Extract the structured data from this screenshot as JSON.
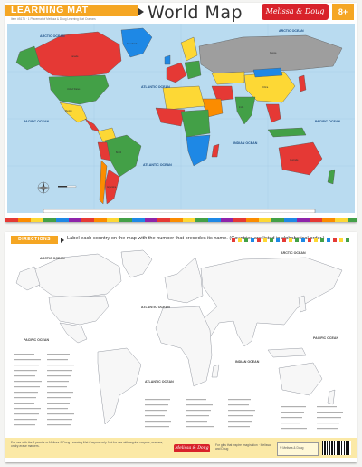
{
  "top": {
    "badge": "LEARNING MAT",
    "subtitle": "Item #5176 · 1 Placemat of Melissa & Doug Learning Mat Crayons",
    "title": "World Map",
    "brand": "Melissa & Doug",
    "age": "8+"
  },
  "oceans": {
    "arctic": "ARCTIC OCEAN",
    "pacific": "PACIFIC OCEAN",
    "atlantic": "ATLANTIC OCEAN",
    "indian": "INDIAN OCEAN"
  },
  "bottom": {
    "directions_badge": "DIRECTIONS",
    "directions": "Label each country on the map with the number that precedes its name. (Countries are listed in alphabetical order.)",
    "footer_left": "For use with the 4 pencils or Melissa & Doug Learning Mat Crayons only. Not for use with regular crayons, markers, or dry-erase markers.",
    "footer_brand": "Melissa & Doug",
    "footer_mid": "For gifts that inspire imagination · Melissa and Doug",
    "footer_right": "© Melissa & Doug"
  },
  "countries": [
    {
      "name": "Canada",
      "color": "#e53935"
    },
    {
      "name": "United States",
      "color": "#43a047"
    },
    {
      "name": "Mexico",
      "color": "#fdd835"
    },
    {
      "name": "Greenland",
      "color": "#1e88e5"
    },
    {
      "name": "Brazil",
      "color": "#43a047"
    },
    {
      "name": "Argentina",
      "color": "#e53935"
    },
    {
      "name": "Russia",
      "color": "#9e9e9e"
    },
    {
      "name": "China",
      "color": "#fdd835"
    },
    {
      "name": "India",
      "color": "#43a047"
    },
    {
      "name": "Australia",
      "color": "#e53935"
    }
  ],
  "colors": {
    "ocean": "#b9dbf0",
    "accent_orange": "#f5a623",
    "brand_red": "#d8222a",
    "outline": "#8a8f98"
  },
  "icons": [
    "arrow-right-icon",
    "compass-rose-icon",
    "barcode-icon"
  ]
}
